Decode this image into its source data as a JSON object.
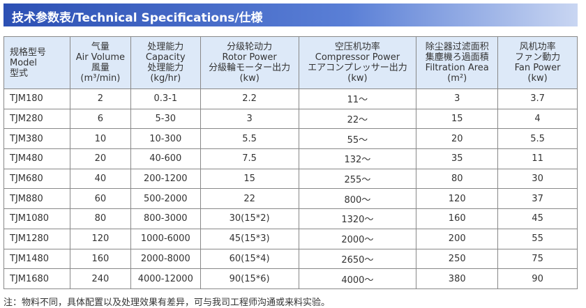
{
  "header": {
    "title": "技术参数表/Technical Specifications/仕様"
  },
  "table": {
    "columns": [
      [
        "规格型号",
        "Model",
        "型式"
      ],
      [
        "气量",
        "Air Volume",
        "風量",
        "(m³/min)"
      ],
      [
        "处理能力",
        "Capacity",
        "处理能力",
        "(kg/hr)"
      ],
      [
        "分级轮动力",
        "Rotor Power",
        "分級輪モーター出力",
        "(kw)"
      ],
      [
        "空压机功率",
        "Compressor Power",
        "エアコンプレッサー出力",
        "(kw)"
      ],
      [
        "除尘器过滤面积",
        "集塵機ろ過面積",
        "Filtration Area",
        "(m²)"
      ],
      [
        "风机功率",
        "ファン動力",
        "Fan Power",
        "(kw)"
      ]
    ],
    "rows": [
      [
        "TJM180",
        "2",
        "0.3-1",
        "2.2",
        "11～",
        "3",
        "3.7"
      ],
      [
        "TJM280",
        "6",
        "5-30",
        "3",
        "22～",
        "15",
        "4"
      ],
      [
        "TJM380",
        "10",
        "10-300",
        "5.5",
        "55～",
        "20",
        "5.5"
      ],
      [
        "TJM480",
        "20",
        "40-600",
        "7.5",
        "132～",
        "35",
        "11"
      ],
      [
        "TJM680",
        "40",
        "200-1200",
        "15",
        "255～",
        "80",
        "30"
      ],
      [
        "TJM880",
        "60",
        "500-2000",
        "22",
        "800～",
        "120",
        "37"
      ],
      [
        "TJM1080",
        "80",
        "800-3000",
        "30(15*2)",
        "1320～",
        "160",
        "45"
      ],
      [
        "TJM1280",
        "120",
        "1000-6000",
        "45(15*3)",
        "2000～",
        "200",
        "55"
      ],
      [
        "TJM1480",
        "160",
        "2000-8000",
        "60(15*4)",
        "2650～",
        "250",
        "75"
      ],
      [
        "TJM1680",
        "240",
        "4000-12000",
        "90(15*6)",
        "4000～",
        "380",
        "90"
      ]
    ]
  },
  "footer": {
    "note": "注：物料不同，具体配置以及处理效果有差异，可与我司工程师沟通或来料实验。"
  }
}
